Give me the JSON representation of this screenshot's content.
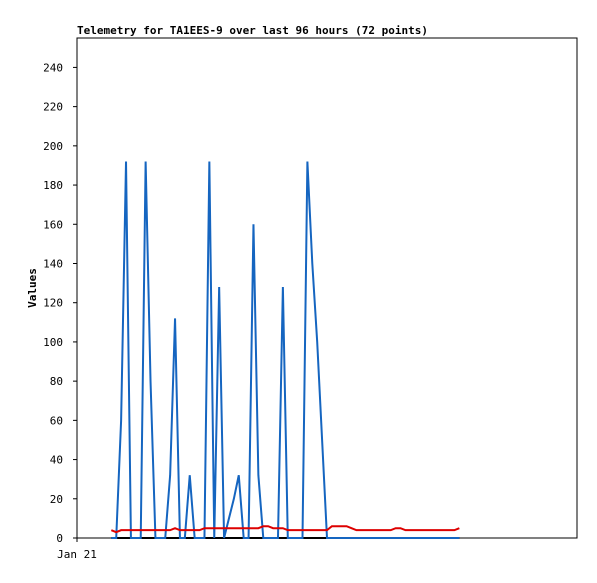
{
  "chart_data": {
    "type": "line",
    "title": "Telemetry for TA1EES-9 over last 96 hours (72 points)",
    "y_label": "Values",
    "xlim": [
      0,
      102
    ],
    "xticks": [
      {
        "value": 0,
        "label": "Jan 21"
      }
    ],
    "ylim": [
      0,
      255
    ],
    "yticks": [
      0,
      20,
      40,
      60,
      80,
      100,
      120,
      140,
      160,
      180,
      200,
      220,
      240
    ],
    "x": [
      7,
      8,
      9,
      10,
      11,
      12,
      13,
      14,
      15,
      16,
      17,
      18,
      19,
      20,
      21,
      22,
      23,
      24,
      25,
      26,
      27,
      28,
      29,
      30,
      31,
      32,
      33,
      34,
      35,
      36,
      37,
      38,
      39,
      40,
      41,
      42,
      43,
      44,
      45,
      46,
      47,
      48,
      49,
      50,
      51,
      52,
      53,
      54,
      55,
      56,
      57,
      58,
      59,
      60,
      61,
      62,
      63,
      64,
      65,
      66,
      67,
      68,
      69,
      70,
      71,
      72,
      73,
      74,
      75,
      76,
      77,
      78
    ],
    "series": [
      {
        "color": "#000000",
        "values": [
          0,
          0,
          0,
          0,
          0,
          0,
          0,
          0,
          0,
          0,
          0,
          0,
          0,
          0,
          0,
          0,
          0,
          0,
          0,
          0,
          0,
          0,
          0,
          0,
          0,
          0,
          0,
          0,
          0,
          0,
          0,
          0,
          0,
          0,
          0,
          0,
          0,
          0,
          0,
          0,
          0,
          0,
          0,
          0,
          0,
          0,
          0,
          0,
          0,
          0,
          0,
          0,
          0,
          0,
          0,
          0,
          0,
          0,
          0,
          0,
          0,
          0,
          0,
          0,
          0,
          0,
          0,
          0,
          0,
          0,
          0,
          0
        ]
      },
      {
        "color": "#1565c0",
        "values": [
          0,
          0,
          60,
          192,
          0,
          0,
          0,
          192,
          80,
          0,
          0,
          0,
          32,
          112,
          0,
          0,
          32,
          0,
          0,
          0,
          192,
          0,
          128,
          0,
          10,
          20,
          32,
          0,
          0,
          160,
          32,
          0,
          0,
          0,
          0,
          128,
          0,
          0,
          0,
          0,
          192,
          140,
          100,
          50,
          0,
          0,
          0,
          0,
          0,
          0,
          0,
          0,
          0,
          0,
          0,
          0,
          0,
          0,
          0,
          0,
          0,
          0,
          0,
          0,
          0,
          0,
          0,
          0,
          0,
          0,
          0,
          0
        ]
      },
      {
        "color": "#dd0000",
        "values": [
          4,
          3,
          4,
          4,
          4,
          4,
          4,
          4,
          4,
          4,
          4,
          4,
          4,
          5,
          4,
          4,
          4,
          4,
          4,
          5,
          5,
          5,
          5,
          5,
          5,
          5,
          5,
          5,
          5,
          5,
          5,
          6,
          6,
          5,
          5,
          5,
          4,
          4,
          4,
          4,
          4,
          4,
          4,
          4,
          4,
          6,
          6,
          6,
          6,
          5,
          4,
          4,
          4,
          4,
          4,
          4,
          4,
          4,
          5,
          5,
          4,
          4,
          4,
          4,
          4,
          4,
          4,
          4,
          4,
          4,
          4,
          5
        ]
      }
    ]
  }
}
